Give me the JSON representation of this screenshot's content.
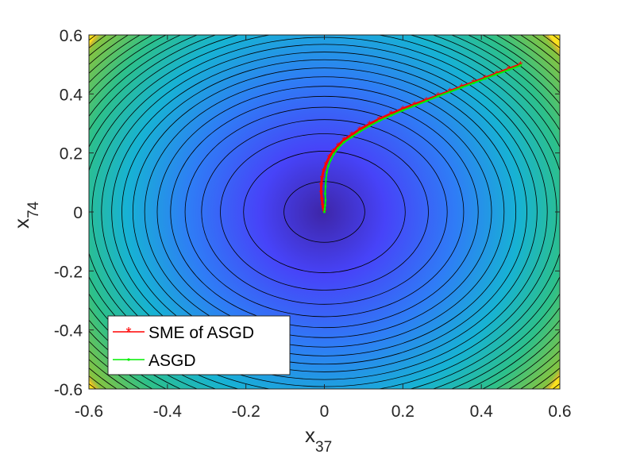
{
  "chart_data": {
    "type": "line",
    "subtype": "contour-with-trajectories",
    "xlabel": {
      "base": "x",
      "sub": "37"
    },
    "ylabel": {
      "base": "x",
      "sub": "74"
    },
    "xlim": [
      -0.6,
      0.6
    ],
    "ylim": [
      -0.6,
      0.6
    ],
    "xticks": [
      "-0.6",
      "-0.4",
      "-0.2",
      "0",
      "0.2",
      "0.4",
      "0.6"
    ],
    "yticks": [
      "0.6",
      "0.4",
      "0.2",
      "0",
      "-0.2",
      "-0.4",
      "-0.6"
    ],
    "colormap": [
      "#3e26a8",
      "#4743f8",
      "#2f7cf6",
      "#17b2d4",
      "#2dc08a",
      "#86c440",
      "#e1b92c",
      "#f9e11e"
    ],
    "contour_color": "#000000",
    "contour_levels_radii": [
      0.0,
      0.103,
      0.206,
      0.265,
      0.313,
      0.355,
      0.392,
      0.426,
      0.458,
      0.488,
      0.516,
      0.542,
      0.568,
      0.592,
      0.616,
      0.639,
      0.661,
      0.682,
      0.703,
      0.723,
      0.743,
      0.762,
      0.781,
      0.8,
      0.818,
      0.836
    ],
    "legend_position": "bottom-left",
    "series": [
      {
        "name": "SME of ASGD",
        "color": "#ff0000",
        "marker": "asterisk",
        "x": [
          0.5,
          0.47,
          0.44,
          0.41,
          0.38,
          0.35,
          0.32,
          0.29,
          0.26,
          0.23,
          0.2,
          0.17,
          0.14,
          0.115,
          0.09,
          0.07,
          0.05,
          0.035,
          0.022,
          0.012,
          0.004,
          -0.002,
          -0.006,
          -0.008,
          -0.008,
          -0.006,
          -0.004,
          -0.002,
          0.0
        ],
        "y": [
          0.5,
          0.485,
          0.47,
          0.455,
          0.44,
          0.425,
          0.41,
          0.395,
          0.38,
          0.365,
          0.35,
          0.333,
          0.315,
          0.298,
          0.28,
          0.262,
          0.245,
          0.225,
          0.205,
          0.185,
          0.162,
          0.14,
          0.115,
          0.09,
          0.065,
          0.04,
          0.02,
          0.008,
          0.0
        ]
      },
      {
        "name": "ASGD",
        "color": "#00ee00",
        "marker": "dot",
        "x": [
          0.5,
          0.47,
          0.44,
          0.41,
          0.38,
          0.35,
          0.32,
          0.29,
          0.26,
          0.23,
          0.2,
          0.17,
          0.14,
          0.115,
          0.09,
          0.07,
          0.05,
          0.035,
          0.024,
          0.016,
          0.01,
          0.006,
          0.004,
          0.003,
          0.002,
          0.003,
          0.002,
          0.001,
          0.0
        ],
        "y": [
          0.497,
          0.482,
          0.467,
          0.452,
          0.437,
          0.422,
          0.407,
          0.392,
          0.376,
          0.36,
          0.344,
          0.327,
          0.309,
          0.291,
          0.272,
          0.254,
          0.236,
          0.216,
          0.196,
          0.176,
          0.155,
          0.134,
          0.11,
          0.086,
          0.062,
          0.04,
          0.022,
          0.01,
          0.0
        ]
      }
    ]
  }
}
